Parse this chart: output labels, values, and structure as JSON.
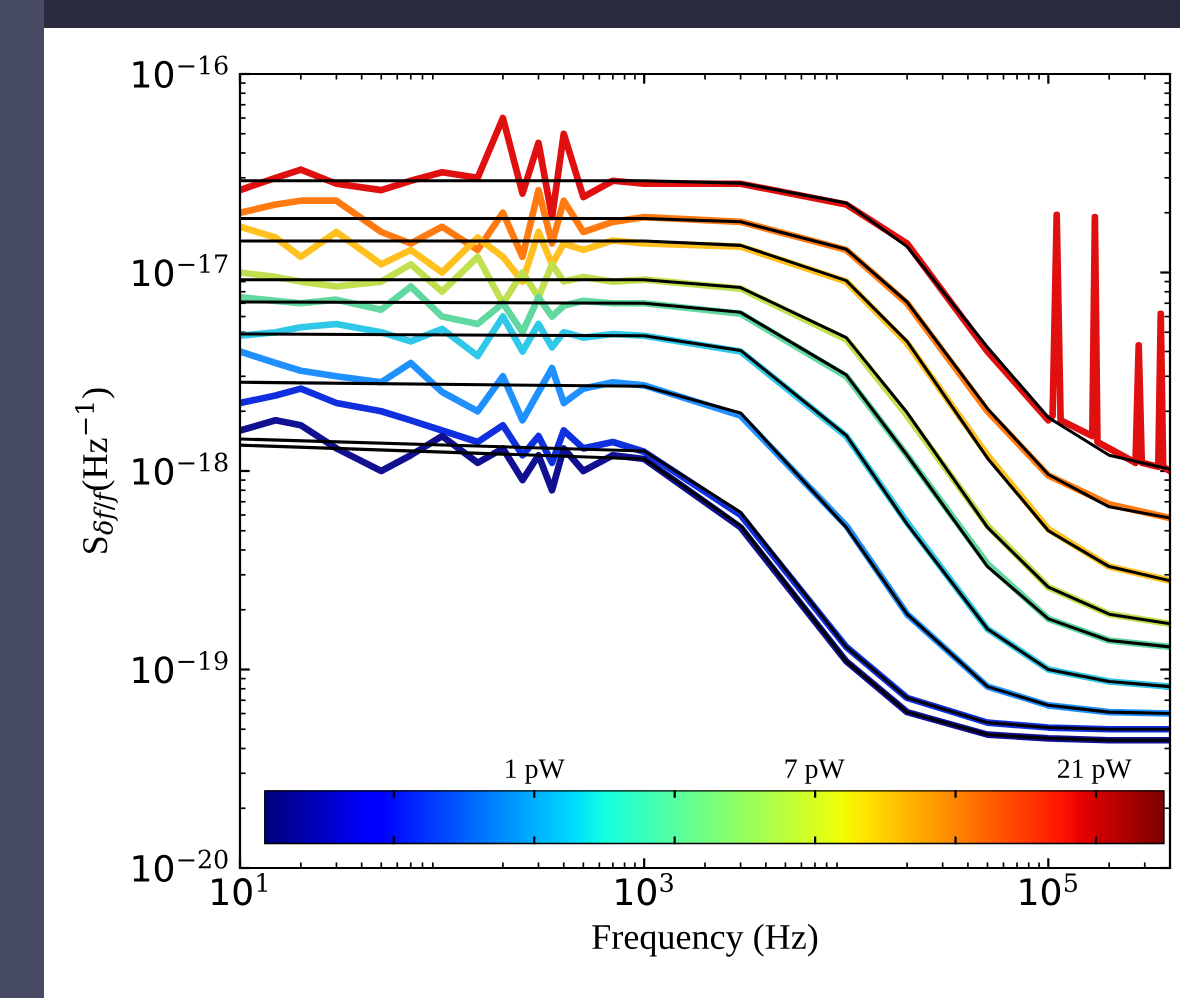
{
  "chart_data": {
    "type": "line",
    "xlabel": "Frequency (Hz)",
    "ylabel": "S$_{δf/f}$(Hz$^{−1}$)",
    "log": "xy",
    "grid": false,
    "marker": "none",
    "line_style": "solid",
    "xlim": [
      10,
      400000
    ],
    "ylim": [
      1e-20,
      1e-16
    ],
    "xticks": [
      {
        "value": 10,
        "label": "10$^{1}$"
      },
      {
        "value": 1000,
        "label": "10$^{3}$"
      },
      {
        "value": 100000,
        "label": "10$^{5}$"
      }
    ],
    "yticks": [
      {
        "value": 1e-20,
        "label": "10$^{−20}$"
      },
      {
        "value": 1e-19,
        "label": "10$^{−19}$"
      },
      {
        "value": 1e-18,
        "label": "10$^{−18}$"
      },
      {
        "value": 1e-17,
        "label": "10$^{−17}$"
      },
      {
        "value": 1e-16,
        "label": "10$^{−16}$"
      }
    ],
    "annotations": [
      "1 pW",
      "7 pW",
      "21 pW"
    ],
    "series": [
      {
        "color": "#e01010",
        "x": [
          10,
          15,
          20,
          30,
          50,
          70,
          100,
          150,
          200,
          250,
          300,
          350,
          400,
          500,
          700,
          1000,
          3000,
          10000,
          20000,
          50000,
          100000,
          105000,
          110000,
          115000,
          165000,
          170000,
          175000,
          270000,
          280000,
          290000,
          350000,
          360000,
          370000,
          400000
        ],
        "values": [
          2.6e-17,
          3e-17,
          3.3e-17,
          2.8e-17,
          2.6e-17,
          2.9e-17,
          3.2e-17,
          3e-17,
          6e-17,
          2.5e-17,
          4.5e-17,
          1.9e-17,
          5e-17,
          2.4e-17,
          2.9e-17,
          2.8e-17,
          2.8e-17,
          2.2e-17,
          1.4e-17,
          4e-18,
          1.8e-18,
          1.9e-18,
          1.95e-17,
          1.8e-18,
          1.5e-18,
          1.9e-17,
          1.4e-18,
          1.1e-18,
          4.3e-18,
          1.1e-18,
          1.05e-18,
          6.2e-18,
          1.05e-18,
          1e-18
        ]
      },
      {
        "color": "#ff7a10",
        "x": [
          10,
          15,
          20,
          30,
          50,
          70,
          100,
          150,
          200,
          250,
          300,
          350,
          400,
          500,
          700,
          1000,
          3000,
          10000,
          20000,
          50000,
          100000,
          200000,
          400000
        ],
        "values": [
          2e-17,
          2.2e-17,
          2.3e-17,
          2.3e-17,
          1.6e-17,
          1.4e-17,
          1.7e-17,
          1.3e-17,
          2e-17,
          1.2e-17,
          2.6e-17,
          1.4e-17,
          2.3e-17,
          1.6e-17,
          1.8e-17,
          1.9e-17,
          1.8e-17,
          1.3e-17,
          7e-18,
          2e-18,
          9.5e-19,
          6.8e-19,
          5.8e-19
        ]
      },
      {
        "color": "#ffc020",
        "x": [
          10,
          15,
          20,
          30,
          50,
          70,
          100,
          150,
          200,
          250,
          300,
          350,
          400,
          500,
          700,
          1000,
          3000,
          10000,
          20000,
          50000,
          100000,
          200000,
          400000
        ],
        "values": [
          1.7e-17,
          1.5e-17,
          1.2e-17,
          1.6e-17,
          1.1e-17,
          1.3e-17,
          1e-17,
          1.5e-17,
          1.2e-17,
          9e-18,
          1.6e-17,
          1.1e-17,
          1.4e-17,
          1.3e-17,
          1.45e-17,
          1.4e-17,
          1.35e-17,
          9e-18,
          4.4e-18,
          1.2e-18,
          5.1e-19,
          3.3e-19,
          2.8e-19
        ]
      },
      {
        "color": "#c0e050",
        "x": [
          10,
          15,
          20,
          30,
          50,
          70,
          100,
          150,
          200,
          250,
          300,
          350,
          400,
          500,
          700,
          1000,
          3000,
          10000,
          20000,
          50000,
          100000,
          200000,
          400000
        ],
        "values": [
          1e-17,
          9.5e-18,
          9e-18,
          8.5e-18,
          9e-18,
          1.1e-17,
          8e-18,
          1.2e-17,
          7e-18,
          1e-17,
          7.5e-18,
          1.1e-17,
          9e-18,
          9.5e-18,
          9e-18,
          9.2e-18,
          8.3e-18,
          4.6e-18,
          1.9e-18,
          5.3e-19,
          2.6e-19,
          1.9e-19,
          1.7e-19
        ]
      },
      {
        "color": "#60d8a0",
        "x": [
          10,
          15,
          20,
          30,
          50,
          70,
          100,
          150,
          200,
          250,
          300,
          350,
          400,
          500,
          700,
          1000,
          3000,
          10000,
          20000,
          50000,
          100000,
          200000,
          400000
        ],
        "values": [
          7.5e-18,
          7.2e-18,
          7e-18,
          7.3e-18,
          6.5e-18,
          8.5e-18,
          6e-18,
          5.5e-18,
          7e-18,
          5e-18,
          7.5e-18,
          6e-18,
          6.8e-18,
          7.2e-18,
          7e-18,
          7e-18,
          6.2e-18,
          3e-18,
          1.2e-18,
          3.4e-19,
          1.8e-19,
          1.4e-19,
          1.3e-19
        ]
      },
      {
        "color": "#30c8e8",
        "x": [
          10,
          15,
          20,
          30,
          50,
          70,
          100,
          150,
          200,
          250,
          300,
          350,
          400,
          500,
          700,
          1000,
          3000,
          10000,
          20000,
          50000,
          100000,
          200000,
          400000
        ],
        "values": [
          4.8e-18,
          5e-18,
          5.3e-18,
          5.5e-18,
          5e-18,
          4.5e-18,
          5.2e-18,
          3.8e-18,
          6e-18,
          4e-18,
          5.5e-18,
          4.2e-18,
          5e-18,
          4.7e-18,
          4.9e-18,
          4.8e-18,
          4e-18,
          1.5e-18,
          5.5e-19,
          1.6e-19,
          1e-19,
          8.7e-20,
          8.2e-20
        ]
      },
      {
        "color": "#2090ff",
        "x": [
          10,
          15,
          20,
          30,
          50,
          70,
          100,
          150,
          200,
          250,
          300,
          350,
          400,
          500,
          700,
          1000,
          3000,
          10000,
          20000,
          50000,
          100000,
          200000,
          400000
        ],
        "values": [
          4e-18,
          3.5e-18,
          3.2e-18,
          3e-18,
          2.8e-18,
          3.5e-18,
          2.5e-18,
          2e-18,
          3e-18,
          1.8e-18,
          2.5e-18,
          3.3e-18,
          2.2e-18,
          2.6e-18,
          2.8e-18,
          2.7e-18,
          1.9e-18,
          5.3e-19,
          1.9e-19,
          8.2e-20,
          6.6e-20,
          6.1e-20,
          6e-20
        ]
      },
      {
        "color": "#1030e0",
        "x": [
          10,
          15,
          20,
          30,
          50,
          70,
          100,
          150,
          200,
          250,
          300,
          350,
          400,
          500,
          700,
          1000,
          3000,
          10000,
          20000,
          50000,
          100000,
          200000,
          400000
        ],
        "values": [
          2.2e-18,
          2.4e-18,
          2.6e-18,
          2.2e-18,
          2e-18,
          1.8e-18,
          1.6e-18,
          1.4e-18,
          1.7e-18,
          1.2e-18,
          1.5e-18,
          1.1e-18,
          1.6e-18,
          1.3e-18,
          1.4e-18,
          1.25e-18,
          6e-19,
          1.3e-19,
          7.2e-20,
          5.4e-20,
          5.1e-20,
          5e-20,
          5e-20
        ]
      },
      {
        "color": "#101090",
        "x": [
          10,
          15,
          20,
          30,
          50,
          70,
          100,
          150,
          200,
          250,
          300,
          350,
          400,
          500,
          700,
          1000,
          3000,
          10000,
          20000,
          50000,
          100000,
          200000,
          400000
        ],
        "values": [
          1.6e-18,
          1.8e-18,
          1.7e-18,
          1.3e-18,
          1e-18,
          1.2e-18,
          1.5e-18,
          1.1e-18,
          1.3e-18,
          9e-19,
          1.2e-18,
          8e-19,
          1.3e-18,
          1e-18,
          1.2e-18,
          1.15e-18,
          5.2e-19,
          1.1e-19,
          6.1e-20,
          4.7e-20,
          4.5e-20,
          4.4e-20,
          4.4e-20
        ]
      },
      {
        "color": "#000000",
        "x": [
          10,
          1000,
          3000,
          10000,
          20000,
          50000,
          100000,
          200000,
          400000
        ],
        "values": [
          2.9e-17,
          2.9e-17,
          2.82e-17,
          2.24e-17,
          1.35e-17,
          4.2e-18,
          1.86e-18,
          1.2e-18,
          1.02e-18
        ]
      },
      {
        "color": "#000000",
        "x": [
          10,
          1000,
          3000,
          10000,
          20000,
          50000,
          100000,
          200000,
          400000
        ],
        "values": [
          1.87e-17,
          1.87e-17,
          1.8e-17,
          1.31e-17,
          7.1e-18,
          2.06e-18,
          9.6e-19,
          6.6e-19,
          5.8e-19
        ]
      },
      {
        "color": "#000000",
        "x": [
          10,
          1000,
          3000,
          10000,
          20000,
          50000,
          100000,
          200000,
          400000
        ],
        "values": [
          1.44e-17,
          1.44e-17,
          1.37e-17,
          9.1e-18,
          4.5e-18,
          1.16e-18,
          5e-19,
          3.3e-19,
          2.8e-19
        ]
      },
      {
        "color": "#000000",
        "x": [
          10,
          1000,
          3000,
          10000,
          20000,
          50000,
          100000,
          200000,
          400000
        ],
        "values": [
          9.2e-18,
          9.2e-18,
          8.4e-18,
          4.7e-18,
          1.97e-18,
          5.2e-19,
          2.6e-19,
          1.9e-19,
          1.7e-19
        ]
      },
      {
        "color": "#000000",
        "x": [
          10,
          1000,
          3000,
          10000,
          20000,
          50000,
          100000,
          200000,
          400000
        ],
        "values": [
          7.1e-18,
          7e-18,
          6.3e-18,
          3.05e-18,
          1.2e-18,
          3.3e-19,
          1.8e-19,
          1.4e-19,
          1.3e-19
        ]
      },
      {
        "color": "#000000",
        "x": [
          10,
          1000,
          3000,
          10000,
          20000,
          50000,
          100000,
          200000,
          400000
        ],
        "values": [
          4.9e-18,
          4.8e-18,
          4.05e-18,
          1.51e-18,
          5.4e-19,
          1.6e-19,
          1e-19,
          8.7e-20,
          8.2e-20
        ]
      },
      {
        "color": "#000000",
        "x": [
          10,
          1000,
          3000,
          10000,
          20000,
          50000,
          100000,
          200000,
          400000
        ],
        "values": [
          2.8e-18,
          2.67e-18,
          1.96e-18,
          5.2e-19,
          1.9e-19,
          8.2e-20,
          6.6e-20,
          6.1e-20,
          6e-20
        ]
      },
      {
        "color": "#000000",
        "x": [
          10,
          1000,
          3000,
          10000,
          20000,
          50000,
          100000,
          200000,
          400000
        ],
        "values": [
          1.45e-18,
          1.26e-18,
          6.2e-19,
          1.3e-19,
          7.2e-20,
          5.4e-20,
          5.1e-20,
          5e-20,
          5e-20
        ]
      },
      {
        "color": "#000000",
        "x": [
          10,
          1000,
          3000,
          10000,
          20000,
          50000,
          100000,
          200000,
          400000
        ],
        "values": [
          1.35e-18,
          1.15e-18,
          5.3e-19,
          1.1e-19,
          6.1e-20,
          4.7e-20,
          4.5e-20,
          4.4e-20,
          4.4e-20
        ]
      }
    ]
  }
}
